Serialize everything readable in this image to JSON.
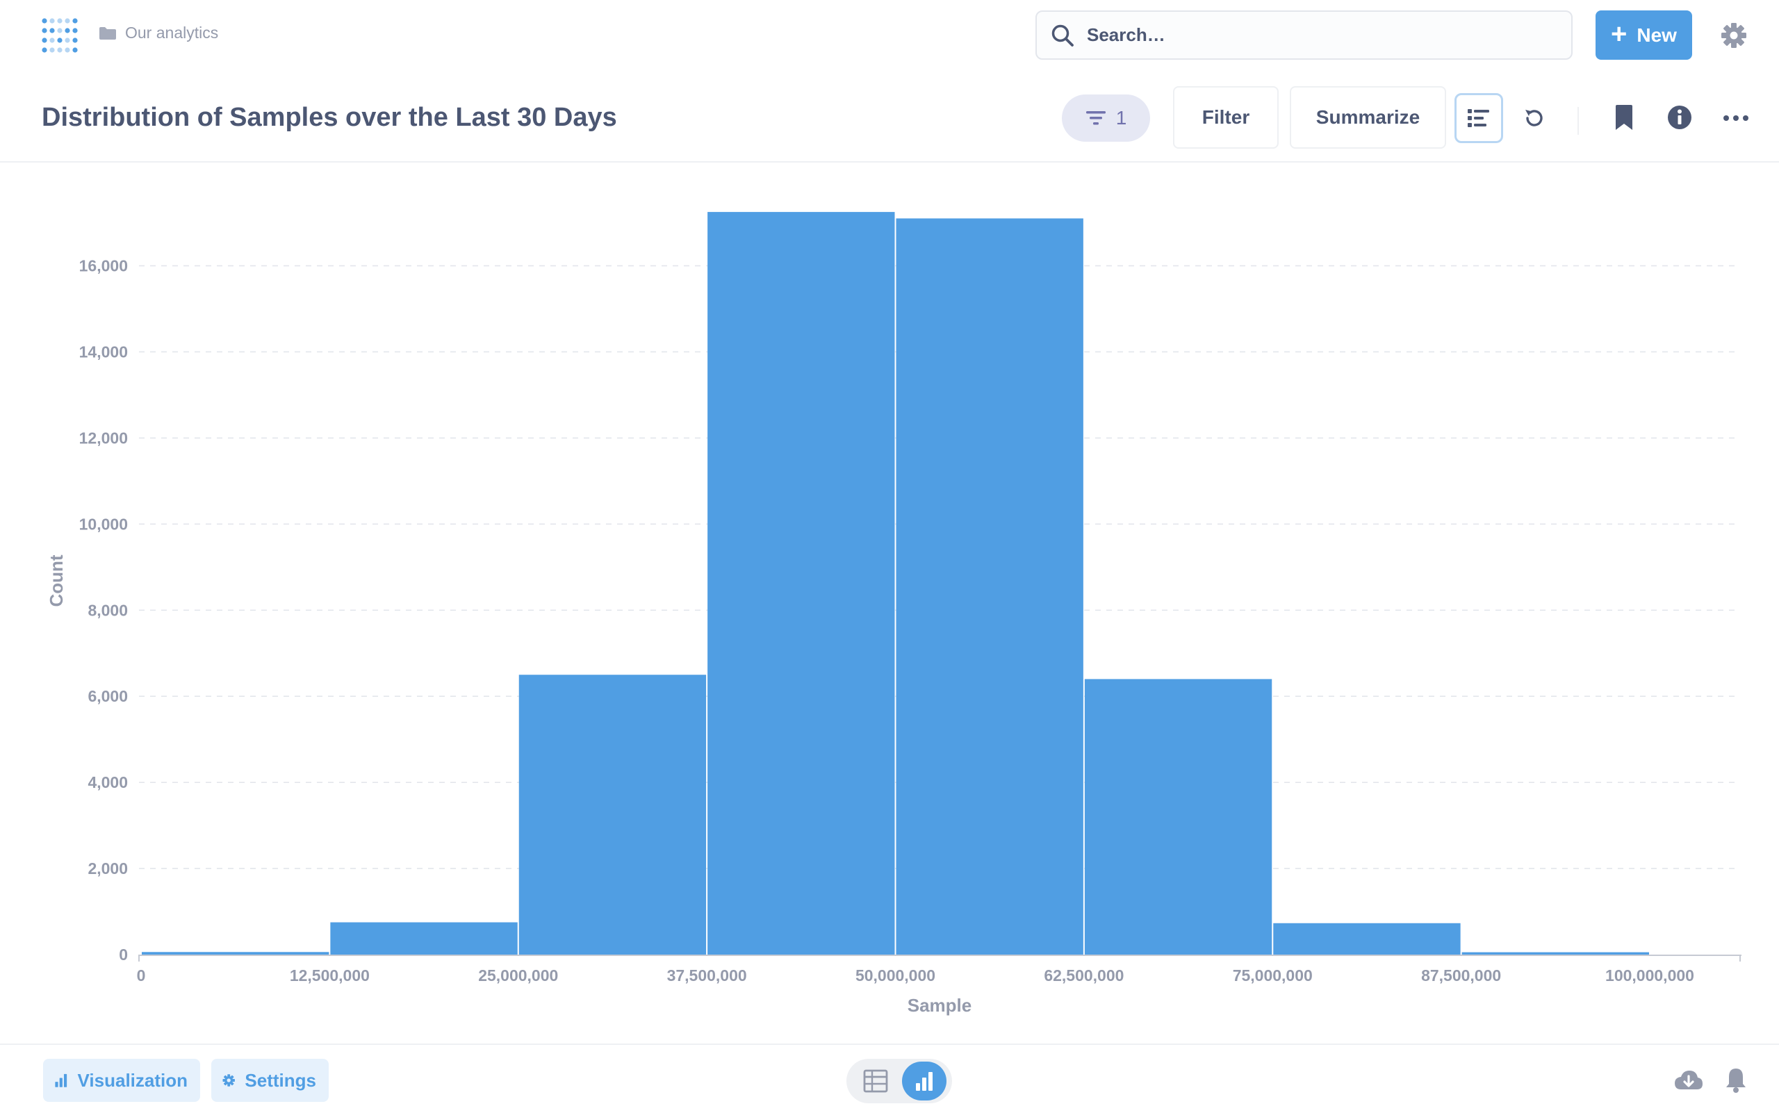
{
  "nav": {
    "breadcrumb": "Our analytics",
    "search_placeholder": "Search…",
    "new_label": "New"
  },
  "header": {
    "title": "Distribution of Samples over the Last 30 Days",
    "filter_count": "1",
    "filter_label": "Filter",
    "summarize_label": "Summarize"
  },
  "footer": {
    "visualization_label": "Visualization",
    "settings_label": "Settings"
  },
  "colors": {
    "brand": "#509ee3",
    "text": "#4c5773",
    "muted": "#949aab",
    "filter_pill": "#7172ad"
  },
  "icons": [
    "metabase-logo-icon",
    "folder-icon",
    "search-icon",
    "plus-icon",
    "gear-icon",
    "filter-icon",
    "notebook-icon",
    "refresh-icon",
    "bookmark-icon",
    "info-icon",
    "ellipsis-icon",
    "bar-chart-icon",
    "table-icon",
    "download-icon",
    "bell-icon"
  ],
  "chart_data": {
    "type": "bar",
    "title": "",
    "xlabel": "Sample",
    "ylabel": "Count",
    "bin_width": 12500000,
    "x_ticks": [
      "0",
      "12,500,000",
      "25,000,000",
      "37,500,000",
      "50,000,000",
      "62,500,000",
      "75,000,000",
      "87,500,000",
      "100,000,000"
    ],
    "y_ticks": [
      "0",
      "2,000",
      "4,000",
      "6,000",
      "8,000",
      "10,000",
      "12,000",
      "14,000",
      "16,000"
    ],
    "ylim": [
      0,
      17300
    ],
    "bins": [
      {
        "start": 0,
        "count": 60
      },
      {
        "start": 12500000,
        "count": 750
      },
      {
        "start": 25000000,
        "count": 6500
      },
      {
        "start": 37500000,
        "count": 17250
      },
      {
        "start": 50000000,
        "count": 17100
      },
      {
        "start": 62500000,
        "count": 6400
      },
      {
        "start": 75000000,
        "count": 730
      },
      {
        "start": 87500000,
        "count": 55
      }
    ],
    "grid": true,
    "legend": "none"
  }
}
